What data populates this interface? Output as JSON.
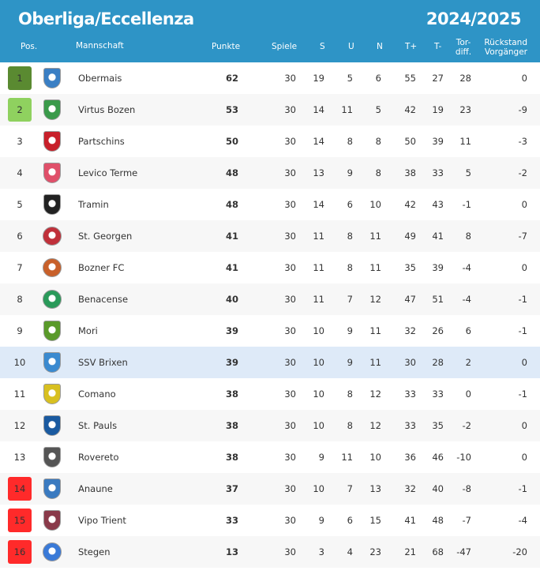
{
  "header": {
    "title": "Oberliga/Eccellenza",
    "season": "2024/2025"
  },
  "columns": {
    "pos": "Pos.",
    "team": "Mannschaft",
    "points": "Punkte",
    "games": "Spiele",
    "wins": "S",
    "draws": "U",
    "losses": "N",
    "goals_for": "T+",
    "goals_against": "T-",
    "diff_1": "Tor-",
    "diff_2": "diff.",
    "gap_1": "Rückstand",
    "gap_2": "Vorgänger"
  },
  "colors": {
    "header": "#2e94c6",
    "champion": "#5a8a31",
    "promotion": "#8fd15f",
    "relegation": "#ff2a2a",
    "highlight": "#deeaf8"
  },
  "rows": [
    {
      "pos": "1",
      "team": "Obermais",
      "pts": "62",
      "sp": "30",
      "s": "19",
      "u": "5",
      "n": "6",
      "tf": "55",
      "ta": "27",
      "d": "28",
      "gap": "0",
      "mark": "champion",
      "logo": "#3a7fc4",
      "shape": "shield"
    },
    {
      "pos": "2",
      "team": "Virtus Bozen",
      "pts": "53",
      "sp": "30",
      "s": "14",
      "u": "11",
      "n": "5",
      "tf": "42",
      "ta": "19",
      "d": "23",
      "gap": "-9",
      "mark": "promotion",
      "logo": "#3a9a4a",
      "shape": "shield"
    },
    {
      "pos": "3",
      "team": "Partschins",
      "pts": "50",
      "sp": "30",
      "s": "14",
      "u": "8",
      "n": "8",
      "tf": "50",
      "ta": "39",
      "d": "11",
      "gap": "-3",
      "mark": "",
      "logo": "#c8202a",
      "shape": "shield"
    },
    {
      "pos": "4",
      "team": "Levico Terme",
      "pts": "48",
      "sp": "30",
      "s": "13",
      "u": "9",
      "n": "8",
      "tf": "38",
      "ta": "33",
      "d": "5",
      "gap": "-2",
      "mark": "",
      "logo": "#e0506a",
      "shape": "shield"
    },
    {
      "pos": "5",
      "team": "Tramin",
      "pts": "48",
      "sp": "30",
      "s": "14",
      "u": "6",
      "n": "10",
      "tf": "42",
      "ta": "43",
      "d": "-1",
      "gap": "0",
      "mark": "",
      "logo": "#222222",
      "shape": "shield"
    },
    {
      "pos": "6",
      "team": "St. Georgen",
      "pts": "41",
      "sp": "30",
      "s": "11",
      "u": "8",
      "n": "11",
      "tf": "49",
      "ta": "41",
      "d": "8",
      "gap": "-7",
      "mark": "",
      "logo": "#c0303a",
      "shape": "round"
    },
    {
      "pos": "7",
      "team": "Bozner FC",
      "pts": "41",
      "sp": "30",
      "s": "11",
      "u": "8",
      "n": "11",
      "tf": "35",
      "ta": "39",
      "d": "-4",
      "gap": "0",
      "mark": "",
      "logo": "#c8602a",
      "shape": "round"
    },
    {
      "pos": "8",
      "team": "Benacense",
      "pts": "40",
      "sp": "30",
      "s": "11",
      "u": "7",
      "n": "12",
      "tf": "47",
      "ta": "51",
      "d": "-4",
      "gap": "-1",
      "mark": "",
      "logo": "#2a9a5a",
      "shape": "round"
    },
    {
      "pos": "9",
      "team": "Mori",
      "pts": "39",
      "sp": "30",
      "s": "10",
      "u": "9",
      "n": "11",
      "tf": "32",
      "ta": "26",
      "d": "6",
      "gap": "-1",
      "mark": "",
      "logo": "#5a9a2a",
      "shape": "shield"
    },
    {
      "pos": "10",
      "team": "SSV Brixen",
      "pts": "39",
      "sp": "30",
      "s": "10",
      "u": "9",
      "n": "11",
      "tf": "30",
      "ta": "28",
      "d": "2",
      "gap": "0",
      "mark": "highlight",
      "logo": "#3a8ad0",
      "shape": "shield"
    },
    {
      "pos": "11",
      "team": "Comano",
      "pts": "38",
      "sp": "30",
      "s": "10",
      "u": "8",
      "n": "12",
      "tf": "33",
      "ta": "33",
      "d": "0",
      "gap": "-1",
      "mark": "",
      "logo": "#d8c020",
      "shape": "shield"
    },
    {
      "pos": "12",
      "team": "St. Pauls",
      "pts": "38",
      "sp": "30",
      "s": "10",
      "u": "8",
      "n": "12",
      "tf": "33",
      "ta": "35",
      "d": "-2",
      "gap": "0",
      "mark": "",
      "logo": "#1a5aa0",
      "shape": "shield"
    },
    {
      "pos": "13",
      "team": "Rovereto",
      "pts": "38",
      "sp": "30",
      "s": "9",
      "u": "11",
      "n": "10",
      "tf": "36",
      "ta": "46",
      "d": "-10",
      "gap": "0",
      "mark": "",
      "logo": "#555555",
      "shape": "shield"
    },
    {
      "pos": "14",
      "team": "Anaune",
      "pts": "37",
      "sp": "30",
      "s": "10",
      "u": "7",
      "n": "13",
      "tf": "32",
      "ta": "40",
      "d": "-8",
      "gap": "-1",
      "mark": "relegation",
      "logo": "#3a7ac0",
      "shape": "shield"
    },
    {
      "pos": "15",
      "team": "Vipo Trient",
      "pts": "33",
      "sp": "30",
      "s": "9",
      "u": "6",
      "n": "15",
      "tf": "41",
      "ta": "48",
      "d": "-7",
      "gap": "-4",
      "mark": "relegation",
      "logo": "#8a3a4a",
      "shape": "shield"
    },
    {
      "pos": "16",
      "team": "Stegen",
      "pts": "13",
      "sp": "30",
      "s": "3",
      "u": "4",
      "n": "23",
      "tf": "21",
      "ta": "68",
      "d": "-47",
      "gap": "-20",
      "mark": "relegation",
      "logo": "#3a7ad8",
      "shape": "round"
    }
  ]
}
